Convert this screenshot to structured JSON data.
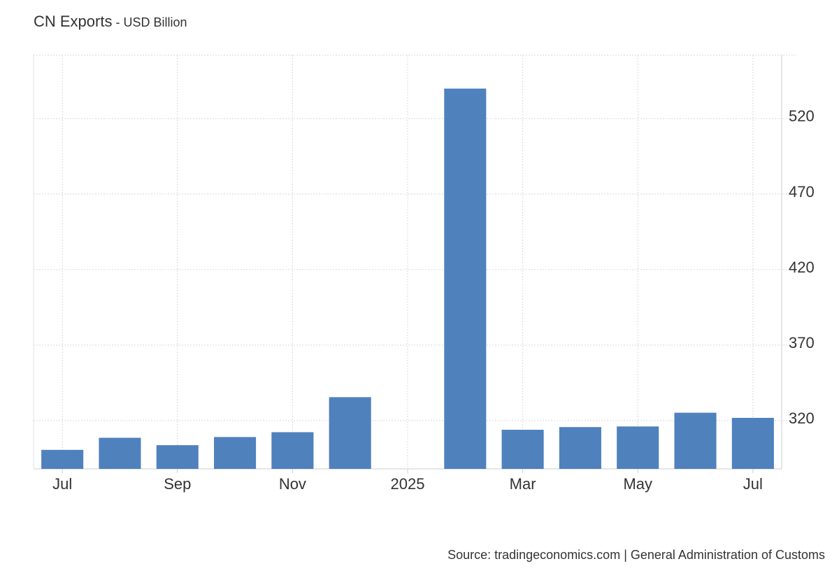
{
  "header": {
    "title": "CN Exports",
    "separator": " - ",
    "subtitle": "USD Billion"
  },
  "source": {
    "text": "Source: tradingeconomics.com | General Administration of Customs"
  },
  "chart_data": {
    "type": "bar",
    "title": "CN Exports",
    "subtitle": "USD Billion",
    "ylabel": "",
    "xlabel": "",
    "bar_color": "#4f81bd",
    "grid": true,
    "y_axis_position": "right",
    "ylim": [
      288,
      562
    ],
    "y_ticks": [
      320,
      370,
      420,
      470,
      520
    ],
    "x_ticks": [
      {
        "label": "Jul",
        "date": "2024-07"
      },
      {
        "label": "Sep",
        "date": "2024-09"
      },
      {
        "label": "Nov",
        "date": "2024-11"
      },
      {
        "label": "2025",
        "date": "2025-01"
      },
      {
        "label": "Mar",
        "date": "2025-03"
      },
      {
        "label": "May",
        "date": "2025-05"
      },
      {
        "label": "Jul",
        "date": "2025-07"
      }
    ],
    "categories": [
      "2024-07",
      "2024-08",
      "2024-09",
      "2024-10",
      "2024-11",
      "2024-12",
      "2025-01",
      "2025-02",
      "2025-03",
      "2025-04",
      "2025-05",
      "2025-06",
      "2025-07"
    ],
    "values": [
      300.6,
      308.6,
      303.7,
      309.1,
      312.3,
      335.5,
      null,
      539.9,
      313.9,
      315.7,
      316.1,
      325.2,
      321.8
    ],
    "source": "Source: tradingeconomics.com | General Administration of Customs"
  }
}
